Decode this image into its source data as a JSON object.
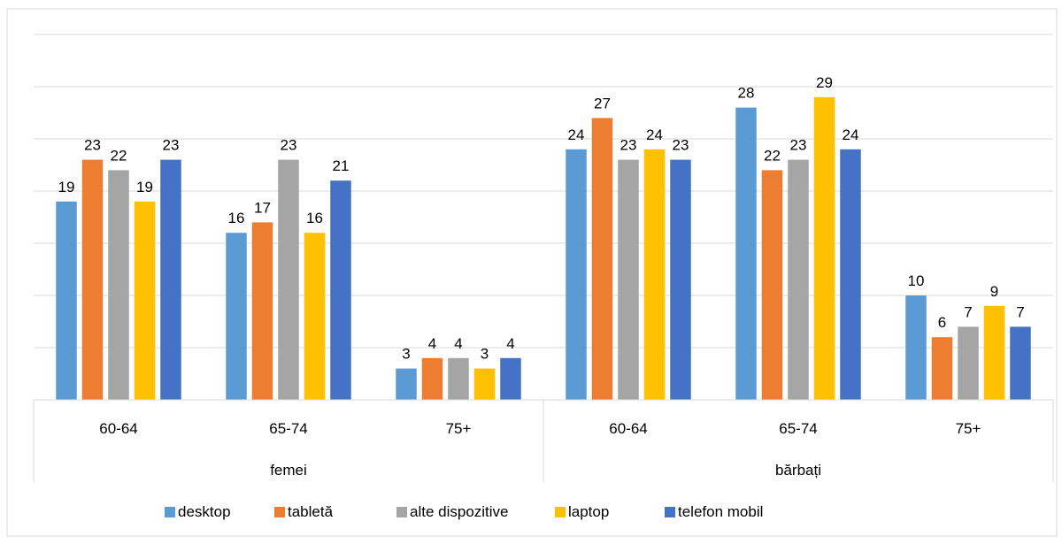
{
  "chart_data": {
    "type": "bar",
    "title": "",
    "xlabel": "",
    "ylabel": "",
    "ylim": [
      0,
      35
    ],
    "y_gridlines": [
      5,
      10,
      15,
      20,
      25,
      30,
      35
    ],
    "grid": true,
    "legend_placement": "bottom",
    "groups": [
      "femei",
      "bărbați"
    ],
    "categories": [
      "60-64",
      "65-74",
      "75+",
      "60-64",
      "65-74",
      "75+"
    ],
    "series": [
      {
        "name": "desktop",
        "color": "#5B9BD5",
        "values": [
          19,
          16,
          3,
          24,
          28,
          10
        ]
      },
      {
        "name": "tabletă",
        "color": "#ED7D31",
        "values": [
          23,
          17,
          4,
          27,
          22,
          6
        ]
      },
      {
        "name": "alte dispozitive",
        "color": "#A5A5A5",
        "values": [
          22,
          23,
          4,
          23,
          23,
          7
        ]
      },
      {
        "name": "laptop",
        "color": "#FFC000",
        "values": [
          19,
          16,
          3,
          24,
          29,
          9
        ]
      },
      {
        "name": "telefon mobil",
        "color": "#4472C4",
        "values": [
          23,
          21,
          4,
          23,
          24,
          7
        ]
      }
    ]
  }
}
